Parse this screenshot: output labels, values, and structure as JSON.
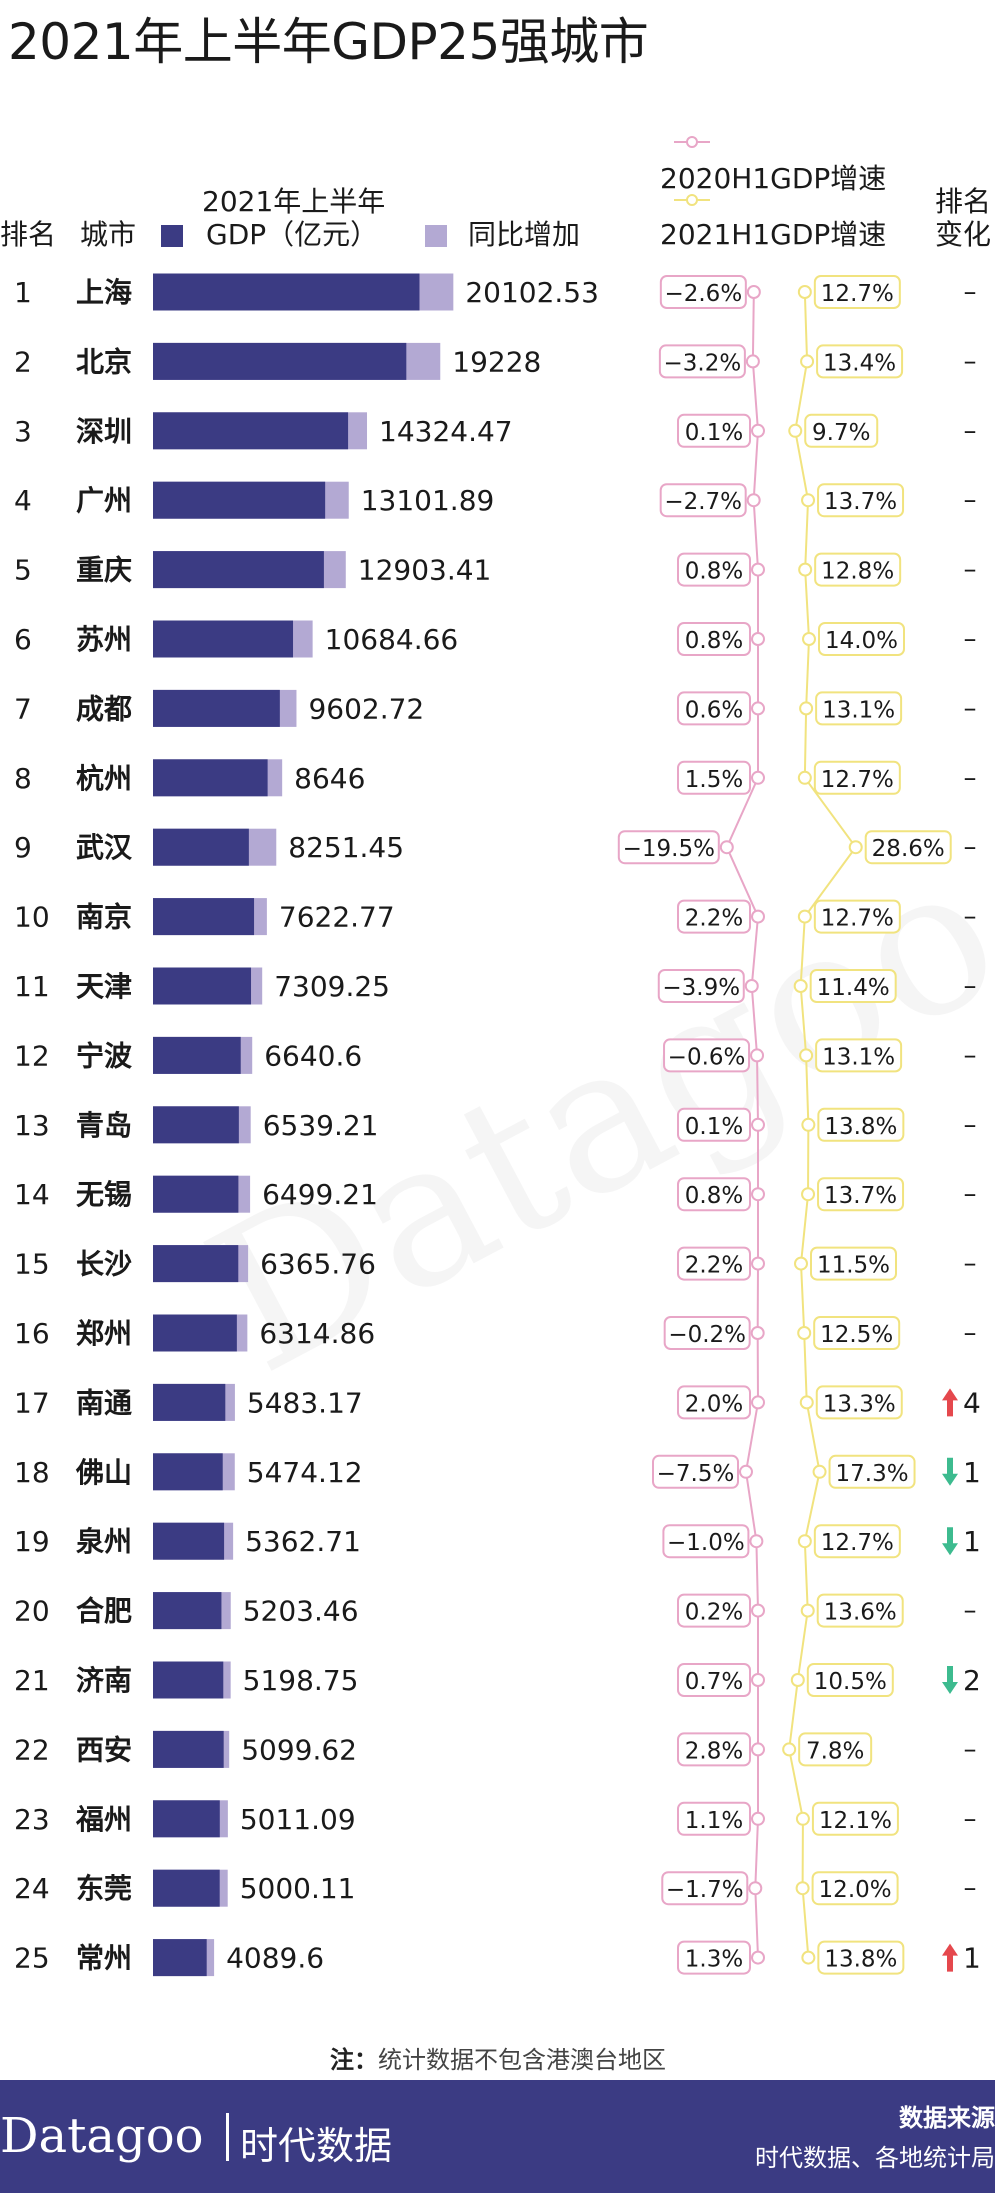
{
  "title": "2021年上半年GDP25强城市",
  "headers": {
    "rank": "排名",
    "city": "城市",
    "gdp_line1": "2021年上半年",
    "gdp_line2": "GDP（亿元）",
    "increase": "同比增加",
    "growth_2020": "2020H1GDP增速",
    "growth_2021": "2021H1GDP增速",
    "change_line1": "排名",
    "change_line2": "变化"
  },
  "watermark": "Datagoo",
  "note_label": "注：",
  "note": "统计数据不包含港澳台地区",
  "footer": {
    "brand": "Datagoo",
    "brand_cn": "时代数据",
    "source_label": "数据来源",
    "source": "时代数据、各地统计局"
  },
  "colors": {
    "gdp_bar": "#3b3b83",
    "increase_bar": "#b3a9d3",
    "growth_2020": "#e8a6c7",
    "growth_2021": "#f1e37f",
    "up": "#e5484d",
    "down": "#3dbb8f"
  },
  "chart_data": {
    "type": "bar",
    "title": "2021年上半年GDP25强城市",
    "series": [
      {
        "name": "2021年上半年GDP（亿元）"
      },
      {
        "name": "同比增加"
      },
      {
        "name": "2020H1GDP增速"
      },
      {
        "name": "2021H1GDP增速"
      }
    ],
    "rows": [
      {
        "rank": "1",
        "city": "上海",
        "gdp": "20102.53",
        "g2020": "−2.6%",
        "g2021": "12.7%",
        "change": "–"
      },
      {
        "rank": "2",
        "city": "北京",
        "gdp": "19228",
        "g2020": "−3.2%",
        "g2021": "13.4%",
        "change": "–"
      },
      {
        "rank": "3",
        "city": "深圳",
        "gdp": "14324.47",
        "g2020": "0.1%",
        "g2021": "9.7%",
        "change": "–"
      },
      {
        "rank": "4",
        "city": "广州",
        "gdp": "13101.89",
        "g2020": "−2.7%",
        "g2021": "13.7%",
        "change": "–"
      },
      {
        "rank": "5",
        "city": "重庆",
        "gdp": "12903.41",
        "g2020": "0.8%",
        "g2021": "12.8%",
        "change": "–"
      },
      {
        "rank": "6",
        "city": "苏州",
        "gdp": "10684.66",
        "g2020": "0.8%",
        "g2021": "14.0%",
        "change": "–"
      },
      {
        "rank": "7",
        "city": "成都",
        "gdp": "9602.72",
        "g2020": "0.6%",
        "g2021": "13.1%",
        "change": "–"
      },
      {
        "rank": "8",
        "city": "杭州",
        "gdp": "8646",
        "g2020": "1.5%",
        "g2021": "12.7%",
        "change": "–"
      },
      {
        "rank": "9",
        "city": "武汉",
        "gdp": "8251.45",
        "g2020": "−19.5%",
        "g2021": "28.6%",
        "change": "–"
      },
      {
        "rank": "10",
        "city": "南京",
        "gdp": "7622.77",
        "g2020": "2.2%",
        "g2021": "12.7%",
        "change": "–"
      },
      {
        "rank": "11",
        "city": "天津",
        "gdp": "7309.25",
        "g2020": "−3.9%",
        "g2021": "11.4%",
        "change": "–"
      },
      {
        "rank": "12",
        "city": "宁波",
        "gdp": "6640.6",
        "g2020": "−0.6%",
        "g2021": "13.1%",
        "change": "–"
      },
      {
        "rank": "13",
        "city": "青岛",
        "gdp": "6539.21",
        "g2020": "0.1%",
        "g2021": "13.8%",
        "change": "–"
      },
      {
        "rank": "14",
        "city": "无锡",
        "gdp": "6499.21",
        "g2020": "0.8%",
        "g2021": "13.7%",
        "change": "–"
      },
      {
        "rank": "15",
        "city": "长沙",
        "gdp": "6365.76",
        "g2020": "2.2%",
        "g2021": "11.5%",
        "change": "–"
      },
      {
        "rank": "16",
        "city": "郑州",
        "gdp": "6314.86",
        "g2020": "−0.2%",
        "g2021": "12.5%",
        "change": "–"
      },
      {
        "rank": "17",
        "city": "南通",
        "gdp": "5483.17",
        "g2020": "2.0%",
        "g2021": "13.3%",
        "change": "4",
        "dir": "up"
      },
      {
        "rank": "18",
        "city": "佛山",
        "gdp": "5474.12",
        "g2020": "−7.5%",
        "g2021": "17.3%",
        "change": "1",
        "dir": "down"
      },
      {
        "rank": "19",
        "city": "泉州",
        "gdp": "5362.71",
        "g2020": "−1.0%",
        "g2021": "12.7%",
        "change": "1",
        "dir": "down"
      },
      {
        "rank": "20",
        "city": "合肥",
        "gdp": "5203.46",
        "g2020": "0.2%",
        "g2021": "13.6%",
        "change": "–"
      },
      {
        "rank": "21",
        "city": "济南",
        "gdp": "5198.75",
        "g2020": "0.7%",
        "g2021": "10.5%",
        "change": "2",
        "dir": "down"
      },
      {
        "rank": "22",
        "city": "西安",
        "gdp": "5099.62",
        "g2020": "2.8%",
        "g2021": "7.8%",
        "change": "–"
      },
      {
        "rank": "23",
        "city": "福州",
        "gdp": "5011.09",
        "g2020": "1.1%",
        "g2021": "12.1%",
        "change": "–"
      },
      {
        "rank": "24",
        "city": "东莞",
        "gdp": "5000.11",
        "g2020": "−1.7%",
        "g2021": "12.0%",
        "change": "–"
      },
      {
        "rank": "25",
        "city": "常州",
        "gdp": "4089.6",
        "g2020": "1.3%",
        "g2021": "13.8%",
        "change": "1",
        "dir": "up"
      }
    ]
  }
}
